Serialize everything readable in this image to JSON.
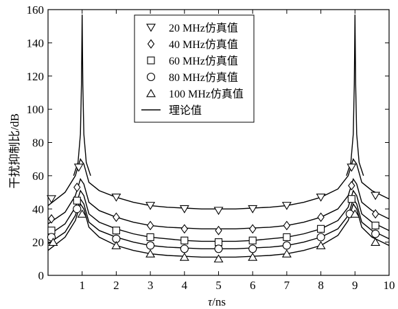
{
  "chart_data": {
    "type": "line",
    "title": "",
    "xlabel_italic": "τ",
    "xlabel_rest": "/ns",
    "ylabel": "干扰抑制比/dB",
    "xlim": [
      0,
      10
    ],
    "ylim": [
      0,
      160
    ],
    "xticks": [
      1,
      2,
      3,
      4,
      5,
      6,
      7,
      8,
      9,
      10
    ],
    "yticks": [
      0,
      20,
      40,
      60,
      80,
      100,
      120,
      140,
      160
    ],
    "grid": false,
    "legend_position": "top-center",
    "theory_label": "理论值",
    "series": [
      {
        "name": "20 MHz仿真值",
        "marker": "triangle-down",
        "x": [
          0.1,
          0.9,
          2,
          3,
          4,
          5,
          6,
          7,
          8,
          8.9,
          9.6
        ],
        "y": [
          46,
          65,
          47,
          42,
          40,
          39,
          40,
          42,
          47,
          65,
          48
        ]
      },
      {
        "name": "40 MHz仿真值",
        "marker": "diamond",
        "x": [
          0.1,
          0.85,
          2,
          3,
          4,
          5,
          6,
          7,
          8,
          8.9,
          9.6
        ],
        "y": [
          34,
          53,
          35,
          30,
          28,
          27,
          28,
          30,
          35,
          54,
          37
        ]
      },
      {
        "name": "60 MHz仿真值",
        "marker": "square",
        "x": [
          0.1,
          0.85,
          2,
          3,
          4,
          5,
          6,
          7,
          8,
          8.9,
          9.6
        ],
        "y": [
          27,
          45,
          27,
          23,
          21,
          20,
          21,
          23,
          28,
          46,
          30
        ]
      },
      {
        "name": "80 MHz仿真值",
        "marker": "circle",
        "x": [
          0.1,
          0.85,
          2,
          3,
          4,
          5,
          6,
          7,
          8,
          8.85,
          9.6
        ],
        "y": [
          23,
          40,
          22,
          18,
          16,
          16,
          16,
          18,
          23,
          37,
          25
        ]
      },
      {
        "name": "100 MHz仿真值",
        "marker": "triangle-up",
        "x": [
          0.15,
          1,
          2,
          3,
          4,
          5,
          6,
          7,
          8,
          9,
          9.6
        ],
        "y": [
          20,
          37,
          18,
          13,
          11,
          10,
          11,
          13,
          18,
          37,
          20
        ]
      }
    ],
    "theory_curves": [
      {
        "x": [
          0,
          0.5,
          0.8,
          0.95,
          1.05,
          1.2,
          1.5,
          2,
          2.5,
          3,
          3.5,
          4,
          4.5,
          5,
          5.5,
          6,
          6.5,
          7,
          7.5,
          8,
          8.5,
          8.8,
          8.95,
          9.05,
          9.2,
          9.5,
          10
        ],
        "y": [
          42,
          50,
          60,
          70,
          67,
          56,
          51,
          47,
          44,
          42,
          41,
          40.5,
          40,
          40,
          40,
          40.5,
          41,
          42,
          44,
          47,
          52,
          60,
          70,
          67,
          56,
          51,
          46
        ]
      },
      {
        "x": [
          0,
          0.5,
          0.8,
          0.95,
          1.05,
          1.2,
          1.5,
          2,
          2.5,
          3,
          3.5,
          4,
          4.5,
          5,
          5.5,
          6,
          6.5,
          7,
          7.5,
          8,
          8.5,
          8.8,
          8.95,
          9.05,
          9.2,
          9.5,
          10
        ],
        "y": [
          31,
          38,
          48,
          58,
          55,
          44,
          39,
          35,
          32,
          30,
          29,
          28.5,
          28,
          28,
          28,
          28.5,
          29,
          30,
          32,
          35,
          40,
          48,
          58,
          55,
          44,
          39,
          34
        ]
      },
      {
        "x": [
          0,
          0.5,
          0.8,
          0.95,
          1.05,
          1.2,
          1.5,
          2,
          2.5,
          3,
          3.5,
          4,
          4.5,
          5,
          5.5,
          6,
          6.5,
          7,
          7.5,
          8,
          8.5,
          8.8,
          8.95,
          9.05,
          9.2,
          9.5,
          10
        ],
        "y": [
          24,
          31,
          41,
          51,
          48,
          37,
          32,
          28,
          25,
          23,
          22,
          21,
          20.5,
          20.5,
          20.5,
          21,
          22,
          23,
          25,
          28,
          33,
          41,
          51,
          48,
          37,
          32,
          27
        ]
      },
      {
        "x": [
          0,
          0.5,
          0.8,
          0.95,
          1.05,
          1.2,
          1.5,
          2,
          2.5,
          3,
          3.5,
          4,
          4.5,
          5,
          5.5,
          6,
          6.5,
          7,
          7.5,
          8,
          8.5,
          8.8,
          8.95,
          9.05,
          9.2,
          9.5,
          10
        ],
        "y": [
          19,
          26,
          36,
          46,
          43,
          32,
          27,
          23,
          20,
          18,
          17,
          16.5,
          16,
          16,
          16,
          16.5,
          17,
          18,
          20,
          23,
          28,
          36,
          46,
          43,
          32,
          27,
          22
        ]
      },
      {
        "x": [
          0,
          0.5,
          0.8,
          0.95,
          1.05,
          1.2,
          1.5,
          2,
          2.5,
          3,
          3.5,
          4,
          4.5,
          5,
          5.5,
          6,
          6.5,
          7,
          7.5,
          8,
          8.5,
          8.8,
          8.95,
          9.05,
          9.2,
          9.5,
          10
        ],
        "y": [
          15,
          23,
          33,
          43,
          40,
          29,
          23,
          18,
          15,
          13,
          12,
          11.5,
          11,
          11,
          11,
          11.5,
          12,
          13,
          15,
          18,
          24,
          33,
          43,
          40,
          29,
          23,
          18
        ]
      },
      {
        "x": [
          0.75,
          0.88,
          0.95,
          0.98,
          1.0,
          1.02,
          1.05,
          1.12,
          1.25
        ],
        "y": [
          60,
          68,
          85,
          115,
          157,
          115,
          85,
          68,
          60
        ]
      },
      {
        "x": [
          8.75,
          8.88,
          8.95,
          8.98,
          9.0,
          9.02,
          9.05,
          9.12,
          9.25
        ],
        "y": [
          60,
          68,
          85,
          115,
          157,
          115,
          85,
          68,
          60
        ]
      }
    ]
  }
}
